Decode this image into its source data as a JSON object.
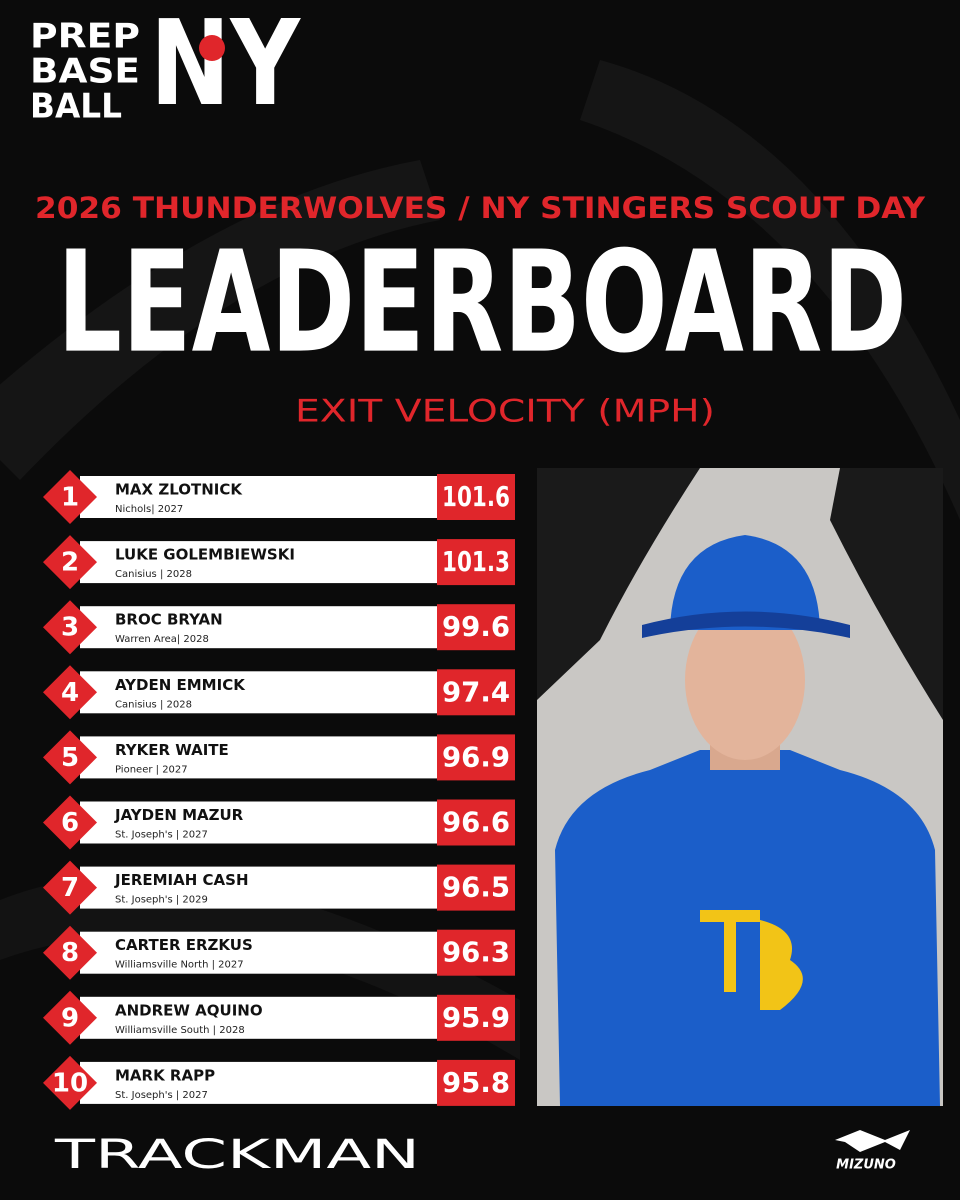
{
  "logo": {
    "lines": [
      "PREP",
      "BASE",
      "BALL"
    ],
    "mark": "NY"
  },
  "header": {
    "event": "2026 THUNDERWOLVES / NY STINGERS SCOUT DAY",
    "title": "LEADERBOARD",
    "metric": "EXIT VELOCITY (MPH)"
  },
  "table": {
    "rows": [
      {
        "rank": 1,
        "name": "MAX ZLOTNICK",
        "info": "Nichols| 2027",
        "value": 101.6
      },
      {
        "rank": 2,
        "name": "LUKE GOLEMBIEWSKI",
        "info": "Canisius | 2028",
        "value": 101.3
      },
      {
        "rank": 3,
        "name": "BROC BRYAN",
        "info": "Warren Area| 2028",
        "value": 99.6
      },
      {
        "rank": 4,
        "name": "AYDEN EMMICK",
        "info": "Canisius | 2028",
        "value": 97.4
      },
      {
        "rank": 5,
        "name": "RYKER WAITE",
        "info": "Pioneer | 2027",
        "value": 96.9
      },
      {
        "rank": 6,
        "name": "JAYDEN MAZUR",
        "info": "St. Joseph's | 2027",
        "value": 96.6
      },
      {
        "rank": 7,
        "name": "JEREMIAH CASH",
        "info": "St. Joseph's | 2029",
        "value": 96.5
      },
      {
        "rank": 8,
        "name": "CARTER ERZKUS",
        "info": "Williamsville North | 2027",
        "value": 96.3
      },
      {
        "rank": 9,
        "name": "ANDREW AQUINO",
        "info": "Williamsville South | 2028",
        "value": 95.9
      },
      {
        "rank": 10,
        "name": "MARK RAPP",
        "info": "St. Joseph's | 2027",
        "value": 95.8
      }
    ]
  },
  "footer": {
    "left": "TRACKMAN",
    "right": "MIZUNO"
  }
}
